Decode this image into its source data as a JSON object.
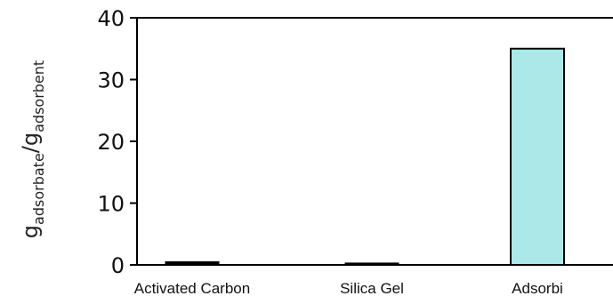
{
  "chart_data": {
    "type": "bar",
    "categories": [
      "Activated Carbon",
      "Silica Gel",
      "Adsorbi"
    ],
    "values": [
      0.5,
      0.3,
      35
    ],
    "title": "",
    "xlabel": "",
    "ylabel": {
      "g": "g",
      "adsorbate": "adsorbate",
      "slash": "/",
      "adsorbent": "adsorbent"
    },
    "ylim": [
      0,
      40
    ],
    "yticks": [
      "0",
      "10",
      "20",
      "30",
      "40"
    ],
    "grid": false,
    "colors": {
      "highlight_bar": "#ace8e8",
      "default_bar": "#000000",
      "axis": "#000000"
    }
  }
}
